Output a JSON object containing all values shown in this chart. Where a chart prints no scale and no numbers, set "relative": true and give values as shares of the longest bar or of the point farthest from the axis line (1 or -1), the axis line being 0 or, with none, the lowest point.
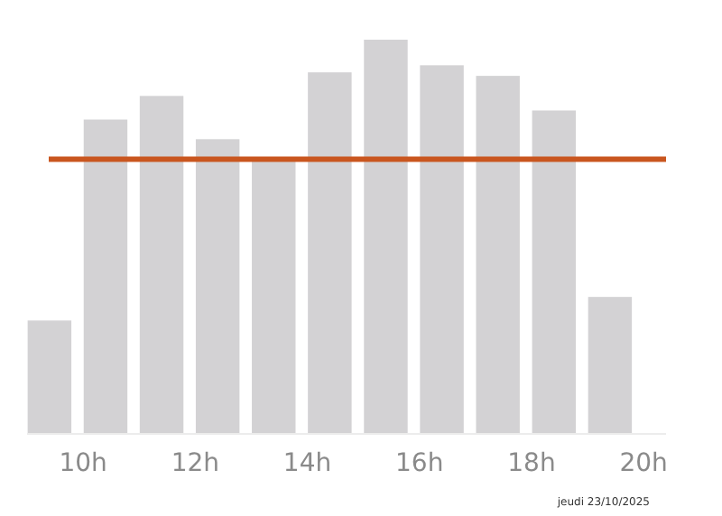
{
  "chart_data": {
    "type": "bar",
    "relative": true,
    "x": [
      9.4,
      10.4,
      11.4,
      12.4,
      13.4,
      14.4,
      15.4,
      16.4,
      17.4,
      18.4,
      19.4
    ],
    "values": [
      0.286,
      0.797,
      0.857,
      0.747,
      0.691,
      0.917,
      1,
      0.935,
      0.908,
      0.82,
      0.346
    ],
    "color": "#d3d2d4",
    "xlim": [
      9,
      20.4
    ],
    "xticks": [
      {
        "value": 10,
        "label": "10h"
      },
      {
        "value": 12,
        "label": "12h"
      },
      {
        "value": 14,
        "label": "14h"
      },
      {
        "value": 16,
        "label": "16h"
      },
      {
        "value": 18,
        "label": "18h"
      },
      {
        "value": 20,
        "label": "20h"
      }
    ],
    "ref_lines": [
      {
        "axis": "y",
        "value": 0.696,
        "color": "#c9561f"
      }
    ],
    "annotations": [
      "jeudi 23/10/2025"
    ],
    "grid": false
  }
}
